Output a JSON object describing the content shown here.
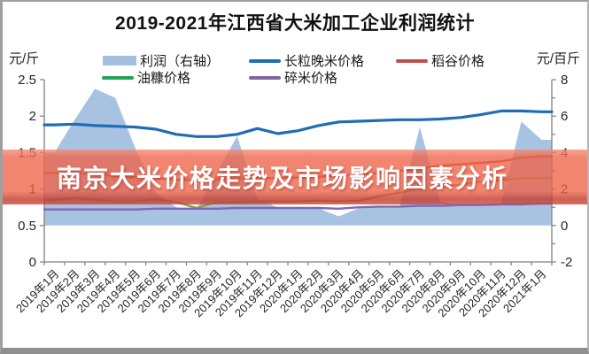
{
  "title": "2019-2021年江西省大米加工企业利润统计",
  "axis_units": {
    "left": "元/斤",
    "right": "元/百斤"
  },
  "overlay_banner": {
    "text": "南京大米价格走势及市场影响因素分析",
    "bg_color": "#ee6348",
    "text_color": "#ffffff"
  },
  "legend": [
    {
      "label": "利润（右轴）",
      "type": "area",
      "color": "#A3BFE0"
    },
    {
      "label": "长粒晚米价格",
      "type": "line",
      "color": "#1F6DB5"
    },
    {
      "label": "稻谷价格",
      "type": "line",
      "color": "#C0504D"
    },
    {
      "label": "油糠价格",
      "type": "line",
      "color": "#21A453"
    },
    {
      "label": "碎米价格",
      "type": "line",
      "color": "#8064A2"
    }
  ],
  "chart_data": {
    "type": "area+line combo, dual axis",
    "title": "2019-2021年江西省大米加工企业利润统计",
    "categories": [
      "2019年1月",
      "2019年2月",
      "2019年3月",
      "2019年4月",
      "2019年5月",
      "2019年6月",
      "2019年7月",
      "2019年8月",
      "2019年9月",
      "2019年10月",
      "2019年11月",
      "2019年12月",
      "2020年1月",
      "2020年2月",
      "2020年3月",
      "2020年4月",
      "2020年5月",
      "2020年6月",
      "2020年7月",
      "2020年8月",
      "2020年9月",
      "2020年10月",
      "2020年11月",
      "2020年12月",
      "2021年1月"
    ],
    "left_axis": {
      "unit": "元/斤",
      "min": 0,
      "max": 2.5,
      "tick_labels": [
        "2.5",
        "2",
        "1.5",
        "1",
        "0.5",
        "0"
      ]
    },
    "right_axis": {
      "unit": "元/百斤",
      "min": -2,
      "max": 8,
      "tick_labels": [
        "8",
        "6",
        "4",
        "2",
        "0",
        "-2"
      ]
    },
    "grid": false,
    "legend_position": "top",
    "series": [
      {
        "name": "利润（右轴）",
        "type": "area",
        "axis": "right",
        "color": "#A3BFE0",
        "values": [
          4.0,
          5.8,
          7.5,
          7.0,
          4.2,
          1.8,
          1.0,
          0.9,
          2.9,
          4.9,
          1.45,
          1.0,
          1.0,
          0.95,
          0.5,
          0.95,
          1.0,
          1.0,
          5.4,
          1.3,
          1.1,
          1.1,
          1.15,
          5.7,
          4.7
        ]
      },
      {
        "name": "长粒晚米价格",
        "type": "line",
        "axis": "left",
        "color": "#1F6DB5",
        "width": 3.2,
        "values": [
          1.88,
          1.89,
          1.87,
          1.86,
          1.85,
          1.82,
          1.75,
          1.72,
          1.72,
          1.75,
          1.83,
          1.76,
          1.8,
          1.87,
          1.92,
          1.93,
          1.94,
          1.95,
          1.95,
          1.96,
          1.98,
          2.02,
          2.07,
          2.07,
          2.06
        ]
      },
      {
        "name": "稻谷价格",
        "type": "line",
        "axis": "left",
        "color": "#C0504D",
        "width": 2.4,
        "values": [
          1.22,
          1.22,
          1.2,
          1.18,
          1.16,
          1.15,
          1.13,
          1.12,
          1.13,
          1.14,
          1.15,
          1.15,
          1.16,
          1.17,
          1.18,
          1.2,
          1.22,
          1.25,
          1.28,
          1.32,
          1.34,
          1.36,
          1.38,
          1.43,
          1.45
        ]
      },
      {
        "name": "油糠价格",
        "type": "line",
        "axis": "left",
        "color": "#8C9A4B",
        "legend_color": "#21A453",
        "width": 2.4,
        "values": [
          0.85,
          0.88,
          0.85,
          0.83,
          0.83,
          0.86,
          0.82,
          0.74,
          0.82,
          0.82,
          0.83,
          0.83,
          0.83,
          0.84,
          0.83,
          0.84,
          0.9,
          0.95,
          1.0,
          1.03,
          1.06,
          1.1,
          1.12,
          1.15,
          1.15
        ]
      },
      {
        "name": "碎米价格",
        "type": "line",
        "axis": "left",
        "color": "#7D68B5",
        "legend_color": "#8064A2",
        "width": 2.4,
        "values": [
          0.72,
          0.72,
          0.72,
          0.72,
          0.72,
          0.73,
          0.73,
          0.73,
          0.73,
          0.74,
          0.74,
          0.74,
          0.74,
          0.74,
          0.73,
          0.75,
          0.76,
          0.76,
          0.77,
          0.77,
          0.78,
          0.78,
          0.79,
          0.79,
          0.8
        ]
      }
    ]
  }
}
